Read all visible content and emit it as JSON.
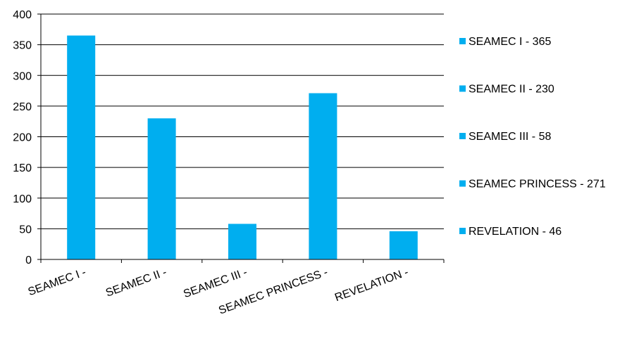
{
  "chart_data": {
    "type": "bar",
    "categories": [
      "SEAMEC I -",
      "SEAMEC II -",
      "SEAMEC III -",
      "SEAMEC PRINCESS -",
      "REVELATION -"
    ],
    "values": [
      365,
      230,
      58,
      271,
      46
    ],
    "ylim": [
      0,
      400
    ],
    "y_ticks": [
      "0",
      "50",
      "100",
      "150",
      "200",
      "250",
      "300",
      "350",
      "400"
    ],
    "grid": true,
    "legend_position": "right",
    "legend": [
      "SEAMEC I - 365",
      "SEAMEC II - 230",
      "SEAMEC III - 58",
      "SEAMEC PRINCESS - 271",
      "REVELATION - 46"
    ],
    "bar_color": "#00AEEF"
  }
}
